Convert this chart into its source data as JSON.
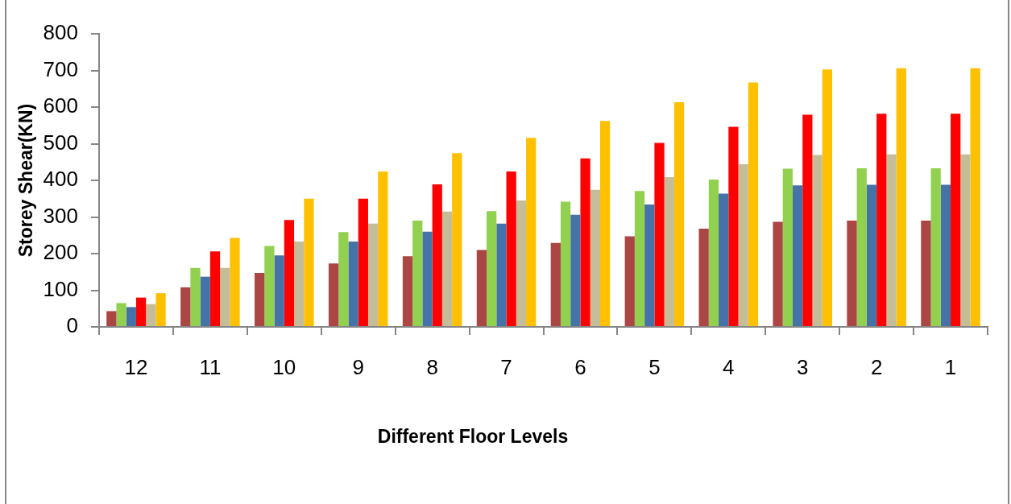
{
  "chart_data": {
    "type": "bar",
    "xlabel": "Different Floor Levels",
    "ylabel": "Storey Shear(KN)",
    "categories": [
      "12",
      "11",
      "10",
      "9",
      "8",
      "7",
      "6",
      "5",
      "4",
      "3",
      "2",
      "1"
    ],
    "ylim": [
      0,
      800
    ],
    "yticks": [
      0,
      100,
      200,
      300,
      400,
      500,
      600,
      700,
      800
    ],
    "series": [
      {
        "color": "#aa4643",
        "values": [
          43,
          108,
          147,
          173,
          193,
          210,
          229,
          247,
          268,
          287,
          290,
          290
        ]
      },
      {
        "color": "#92d050",
        "values": [
          65,
          161,
          221,
          259,
          290,
          316,
          342,
          371,
          402,
          432,
          433,
          433
        ]
      },
      {
        "color": "#4572a7",
        "values": [
          54,
          137,
          195,
          233,
          260,
          282,
          306,
          334,
          364,
          386,
          388,
          388
        ]
      },
      {
        "color": "#ff0000",
        "values": [
          80,
          206,
          292,
          350,
          389,
          424,
          460,
          502,
          546,
          579,
          582,
          582
        ]
      },
      {
        "color": "#c4bd97",
        "values": [
          62,
          161,
          233,
          282,
          315,
          345,
          374,
          409,
          444,
          469,
          471,
          471
        ]
      },
      {
        "color": "#ffc000",
        "values": [
          92,
          243,
          350,
          424,
          474,
          516,
          562,
          613,
          667,
          703,
          706,
          706
        ]
      }
    ]
  }
}
